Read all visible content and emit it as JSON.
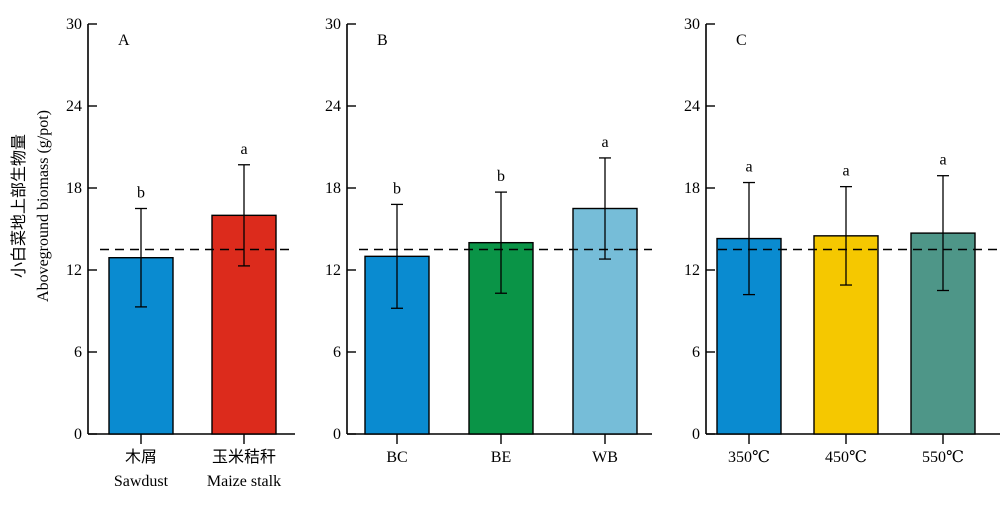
{
  "chart_data": {
    "ylabel": [
      "小白菜地上部生物量",
      "Aboveground biomass (g/pot)"
    ],
    "panels": [
      {
        "type": "bar",
        "label": "A",
        "categories": [
          [
            "木屑",
            "Sawdust"
          ],
          [
            "玉米秸秆",
            "Maize stalk"
          ]
        ],
        "values": [
          12.9,
          16.0
        ],
        "errors": [
          3.6,
          3.7
        ],
        "significance": [
          "b",
          "a"
        ],
        "colors": [
          "#0a8bd0",
          "#dc2b1c"
        ],
        "ylim": [
          0,
          30
        ],
        "yticks": [
          0,
          6,
          12,
          18,
          24,
          30
        ],
        "reference_line": 13.5
      },
      {
        "type": "bar",
        "label": "B",
        "categories": [
          [
            "BC"
          ],
          [
            "BE"
          ],
          [
            "WB"
          ]
        ],
        "values": [
          13.0,
          14.0,
          16.5
        ],
        "errors": [
          3.8,
          3.7,
          3.7
        ],
        "significance": [
          "b",
          "b",
          "a"
        ],
        "colors": [
          "#0a8bd0",
          "#0a9447",
          "#76bdd8"
        ],
        "ylim": [
          0,
          30
        ],
        "yticks": [
          0,
          6,
          12,
          18,
          24,
          30
        ],
        "reference_line": 13.5
      },
      {
        "type": "bar",
        "label": "C",
        "categories": [
          [
            "350℃"
          ],
          [
            "450℃"
          ],
          [
            "550℃"
          ]
        ],
        "values": [
          14.3,
          14.5,
          14.7
        ],
        "errors": [
          4.1,
          3.6,
          4.2
        ],
        "significance": [
          "a",
          "a",
          "a"
        ],
        "colors": [
          "#0a8bd0",
          "#f5c800",
          "#4e9688"
        ],
        "ylim": [
          0,
          30
        ],
        "yticks": [
          0,
          6,
          12,
          18,
          24,
          30
        ],
        "reference_line": 13.5
      }
    ]
  }
}
